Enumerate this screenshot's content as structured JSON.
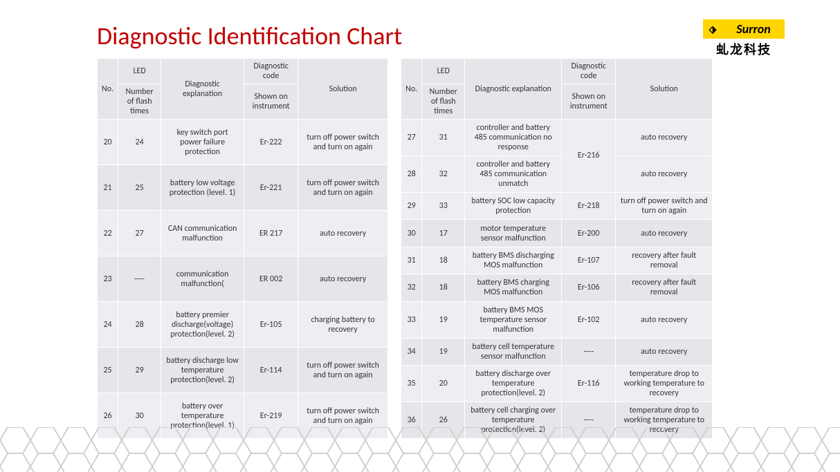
{
  "title": "Diagnostic Identification Chart",
  "logo": {
    "brand": "Surron",
    "sub": "虬龙科技",
    "glyph": "⬗"
  },
  "headers": {
    "no": "No.",
    "led": "LED",
    "led_sub": "Number of flash times",
    "diag": "Diagnostic explanation",
    "code": "Diagnostic code",
    "code_sub": "Shown on instrument",
    "sol": "Solution"
  },
  "left_rows": [
    {
      "no": "20",
      "led": "24",
      "diag": "key switch port power failure protection",
      "code": "Er-222",
      "sol": "turn off power switch and turn on again"
    },
    {
      "no": "21",
      "led": "25",
      "diag": "battery low voltage protection (level. 1)",
      "code": "Er-221",
      "sol": "turn off power switch and turn on again"
    },
    {
      "no": "22",
      "led": "27",
      "diag": "CAN communication malfunction",
      "code": "ER 217",
      "sol": "auto recovery"
    },
    {
      "no": "23",
      "led": "----",
      "diag": "communication malfunction(",
      "code": "ER 002",
      "sol": "auto recovery"
    },
    {
      "no": "24",
      "led": "28",
      "diag": "battery premier discharge(voltage) protection(level. 2)",
      "code": "Er-105",
      "sol": "charging battery to recovery"
    },
    {
      "no": "25",
      "led": "29",
      "diag": "battery discharge low temperature protection(level. 2)",
      "code": "Er-114",
      "sol": "turn off power switch and turn on again"
    },
    {
      "no": "26",
      "led": "30",
      "diag": "battery over temperature protection(level. 1)",
      "code": "Er-219",
      "sol": "turn off power switch and turn on again"
    }
  ],
  "right_rows": [
    {
      "no": "27",
      "led": "31",
      "diag": "controller and battery 485 communication no response",
      "code": "Er-216",
      "sol": "auto recovery",
      "code_rowspan": 2
    },
    {
      "no": "28",
      "led": "32",
      "diag": "controller and battery 485 communication unmatch",
      "code": null,
      "sol": "auto recovery"
    },
    {
      "no": "29",
      "led": "33",
      "diag": "battery SOC low capacity protection",
      "code": "Er-218",
      "sol": "turn off power switch and turn on again"
    },
    {
      "no": "30",
      "led": "17",
      "diag": "motor temperature sensor malfunction",
      "code": "Er-200",
      "sol": "auto recovery"
    },
    {
      "no": "31",
      "led": "18",
      "diag": "battery BMS discharging MOS malfunction",
      "code": "Er-107",
      "sol": "recovery after fault removal"
    },
    {
      "no": "32",
      "led": "18",
      "diag": "battery BMS charging MOS malfunction",
      "code": "Er-106",
      "sol": "recovery after fault removal"
    },
    {
      "no": "33",
      "led": "19",
      "diag": "battery BMS MOS temperature sensor malfunction",
      "code": "Er-102",
      "sol": "auto recovery"
    },
    {
      "no": "34",
      "led": "19",
      "diag": "battery cell temperature sensor malfunction",
      "code": "----",
      "sol": "auto recovery"
    },
    {
      "no": "35",
      "led": "20",
      "diag": "battery discharge over temperature protection(level. 2)",
      "code": "Er-116",
      "sol": "temperature drop to working temperature to recovery"
    },
    {
      "no": "36",
      "led": "26",
      "diag": "battery cell charging over temperature protection(level. 2)",
      "code": "----",
      "sol": "temperature drop to working temperature to recovery"
    }
  ],
  "styling": {
    "title_color": "#c00000",
    "header_bg": "#e6e6ea",
    "row_odd_bg": "#eeeef2",
    "row_even_bg": "#e6e6ea",
    "font_family": "Calibri",
    "honeycomb_stroke": "#d0d0d0"
  }
}
